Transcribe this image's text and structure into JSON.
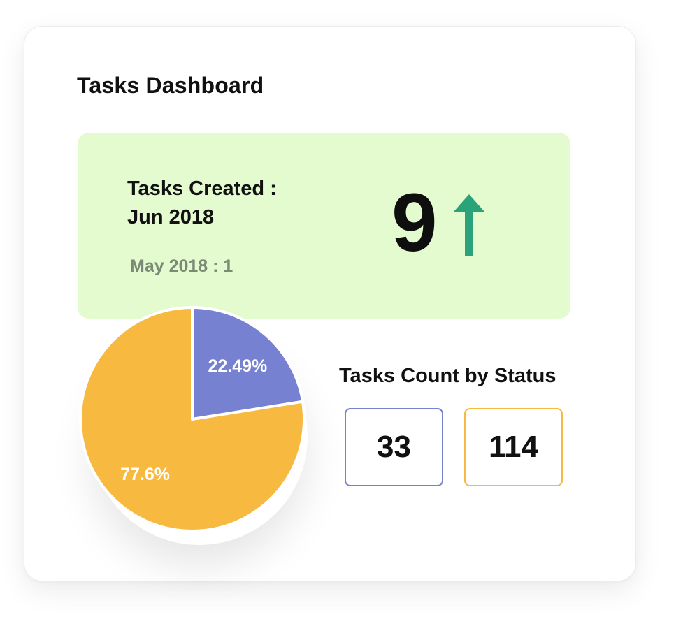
{
  "dashboard": {
    "title": "Tasks Dashboard"
  },
  "kpi": {
    "label_line1": "Tasks Created :",
    "label_line2": "Jun 2018",
    "value": "9",
    "comparison": "May 2018 : 1",
    "trend": "up",
    "trend_icon": "arrow-up-icon",
    "trend_color": "#2aa27a",
    "background_color": "#e4fbd0"
  },
  "chart_data": {
    "type": "pie",
    "slices": [
      {
        "label": "22.49%",
        "value": 22.49,
        "color": "#7681d2"
      },
      {
        "label": "77.6%",
        "value": 77.6,
        "color": "#f8b940"
      }
    ]
  },
  "status": {
    "title": "Tasks Count by Status",
    "counts": [
      {
        "value": "33",
        "color": "#7681d2"
      },
      {
        "value": "114",
        "color": "#f8b940"
      }
    ]
  }
}
